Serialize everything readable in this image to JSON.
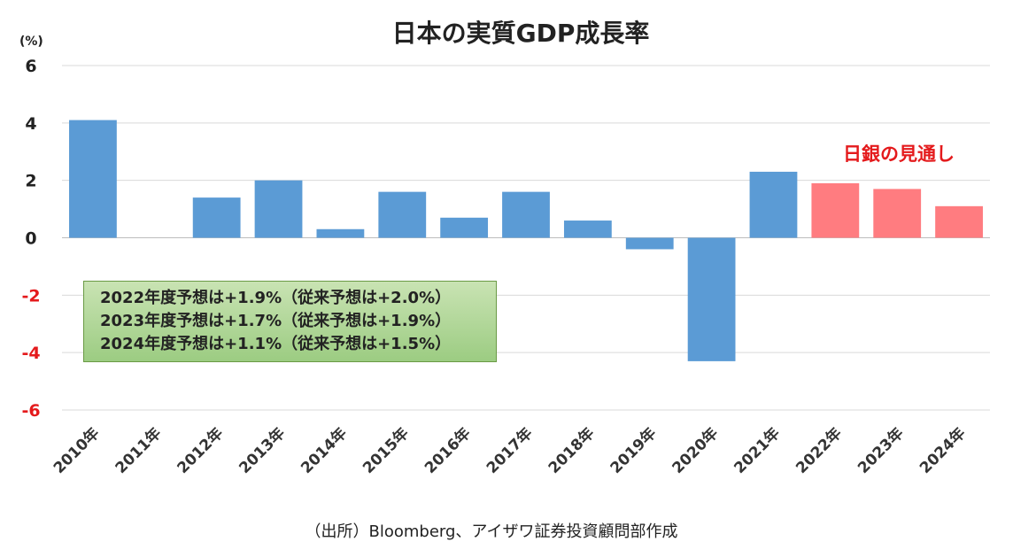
{
  "chart_data": {
    "type": "bar",
    "title": "日本の実質GDP成長率",
    "unit_label": "(%)",
    "categories": [
      "2010年",
      "2011年",
      "2012年",
      "2013年",
      "2014年",
      "2015年",
      "2016年",
      "2017年",
      "2018年",
      "2019年",
      "2020年",
      "2021年",
      "2022年",
      "2023年",
      "2024年"
    ],
    "values": [
      4.1,
      -0.0,
      1.4,
      2.0,
      0.3,
      1.6,
      0.7,
      1.6,
      0.6,
      -0.4,
      -4.3,
      2.3,
      1.9,
      1.7,
      1.1
    ],
    "forecast_from_index": 12,
    "colors": {
      "actual": "#5b9bd5",
      "forecast": "#ff7c80",
      "negative_tick": "#e41a1c",
      "positive_tick": "#222222"
    },
    "ylim": [
      -6,
      6
    ],
    "yticks": [
      6,
      4,
      2,
      0,
      -2,
      -4,
      -6
    ],
    "grid": true,
    "annotation": "日銀の見通し",
    "callout_lines": [
      "2022年度予想は+1.9%（従来予想は+2.0%）",
      "2023年度予想は+1.7%（従来予想は+1.9%）",
      "2024年度予想は+1.1%（従来予想は+1.5%）"
    ],
    "xlabel": "",
    "ylabel": ""
  },
  "source": "（出所）Bloomberg、アイザワ証券投資顧問部作成"
}
